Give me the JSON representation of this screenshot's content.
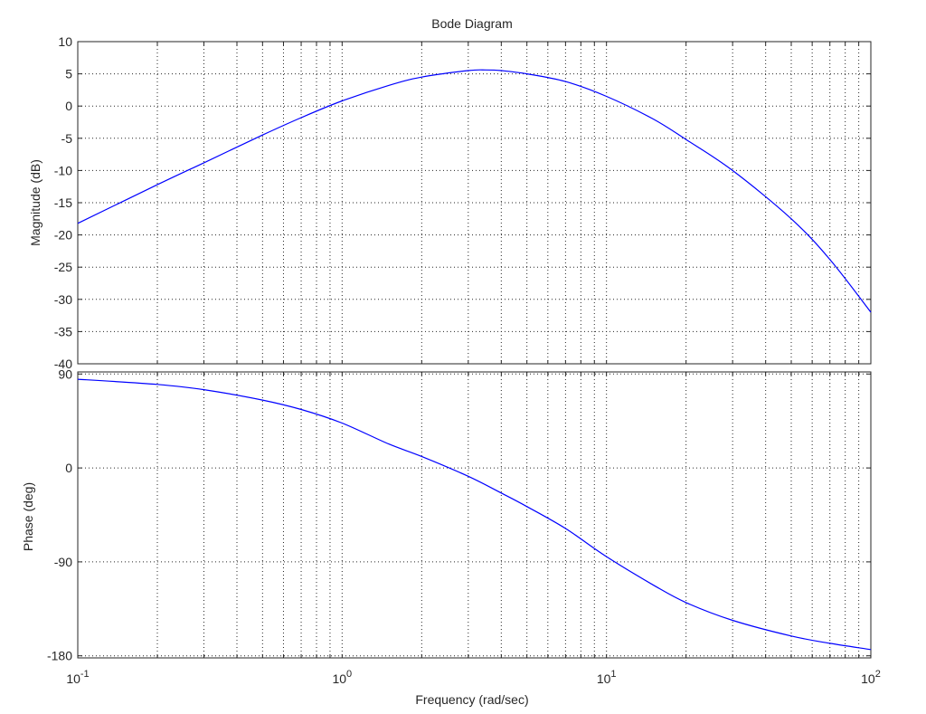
{
  "title": "Bode Diagram",
  "xlabel": "Frequency  (rad/sec)",
  "x_ticks": [
    {
      "value": 0.1,
      "base": "10",
      "exp": "-1"
    },
    {
      "value": 1,
      "base": "10",
      "exp": "0"
    },
    {
      "value": 10,
      "base": "10",
      "exp": "1"
    },
    {
      "value": 100,
      "base": "10",
      "exp": "2"
    }
  ],
  "chart_data": [
    {
      "type": "line",
      "panel": "magnitude",
      "xscale": "log",
      "xlim": [
        0.1,
        100
      ],
      "ylim": [
        -40,
        10
      ],
      "ylabel": "Magnitude (dB)",
      "y_ticks": [
        10,
        5,
        0,
        -5,
        -10,
        -15,
        -20,
        -25,
        -30,
        -35,
        -40
      ],
      "grid": true,
      "color": "#0000ff",
      "x": [
        0.1,
        0.2,
        0.3,
        0.5,
        0.7,
        1,
        1.5,
        2,
        3,
        3.5,
        4,
        5,
        7,
        10,
        15,
        20,
        30,
        50,
        70,
        100
      ],
      "y": [
        -18.2,
        -12.2,
        -8.8,
        -4.5,
        -1.8,
        0.8,
        3.2,
        4.5,
        5.5,
        5.6,
        5.5,
        5.0,
        3.8,
        1.5,
        -2.0,
        -5.2,
        -10.0,
        -17.5,
        -23.8,
        -32.0
      ]
    },
    {
      "type": "line",
      "panel": "phase",
      "xscale": "log",
      "xlim": [
        0.1,
        100
      ],
      "ylim": [
        -182,
        92
      ],
      "ylabel": "Phase (deg)",
      "y_ticks": [
        90,
        0,
        -90,
        -180
      ],
      "grid": true,
      "color": "#0000ff",
      "x": [
        0.1,
        0.2,
        0.3,
        0.5,
        0.7,
        1,
        1.5,
        2,
        3,
        4,
        5,
        7,
        10,
        15,
        20,
        30,
        50,
        70,
        100
      ],
      "y": [
        85,
        80,
        75,
        65,
        56,
        43,
        23,
        11,
        -8,
        -24,
        -37,
        -58,
        -85,
        -112,
        -129,
        -146,
        -161,
        -168,
        -174
      ]
    }
  ]
}
